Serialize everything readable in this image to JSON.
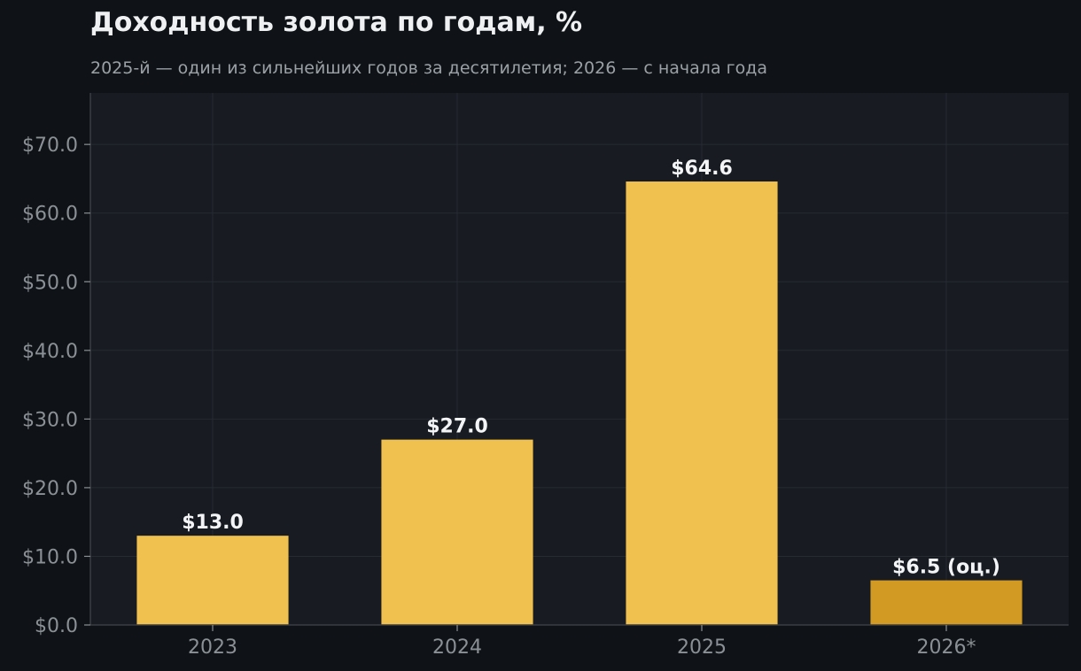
{
  "title": "Доходность золота по годам, %",
  "subtitle": "2025-й — один из сильнейших годов за десятилетия; 2026 — с начала года",
  "colors": {
    "page_background": "#0f1317",
    "plot_background": "#181b22",
    "bar": "#f1c150",
    "bar_estimate": "#d29a22",
    "grid": "#262a31",
    "axis": "#3a3e45",
    "tick_text": "#8b9096",
    "value_text": "#f2f4f6"
  },
  "chart_data": {
    "type": "bar",
    "title": "Доходность золота по годам, %",
    "subtitle": "2025-й — один из сильнейших годов за десятилетия; 2026 — с начала года",
    "xlabel": "",
    "ylabel": "",
    "categories": [
      "2023",
      "2024",
      "2025",
      "2026*"
    ],
    "values": [
      13.0,
      27.0,
      64.6,
      6.5
    ],
    "value_labels": [
      "$13.0",
      "$27.0",
      "$64.6",
      "$6.5 (оц.)"
    ],
    "estimate": [
      false,
      false,
      false,
      true
    ],
    "ylim": [
      0,
      77.5
    ],
    "yticks": [
      0,
      10,
      20,
      30,
      40,
      50,
      60,
      70
    ],
    "ytick_labels": [
      "$0.0",
      "$10.0",
      "$20.0",
      "$30.0",
      "$40.0",
      "$50.0",
      "$60.0",
      "$70.0"
    ],
    "grid": true,
    "legend": "none"
  }
}
